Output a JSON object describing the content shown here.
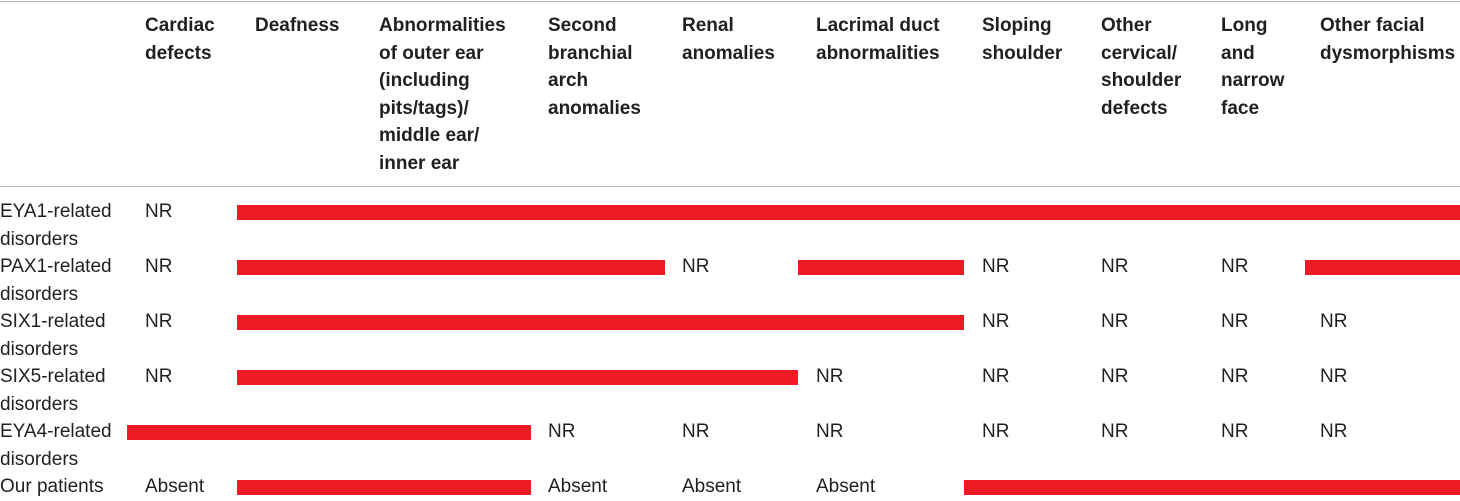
{
  "colors": {
    "bar": "#ed1c24",
    "text": "#231f20",
    "rule": "#b8b8b8"
  },
  "columns": [
    {
      "id": "cardiac",
      "label": "Cardiac\ndefects"
    },
    {
      "id": "deafness",
      "label": "Deafness"
    },
    {
      "id": "ear",
      "label": "Abnormalities\nof outer ear\n(including\npits/tags)/\nmiddle ear/\ninner ear"
    },
    {
      "id": "branchial",
      "label": "Second\nbranchial\narch\nanomalies"
    },
    {
      "id": "renal",
      "label": "Renal\nanomalies"
    },
    {
      "id": "lacrimal",
      "label": "Lacrimal duct\nabnormalities"
    },
    {
      "id": "shoulder",
      "label": "Sloping\nshoulder"
    },
    {
      "id": "cervical",
      "label": "Other\ncervical/\nshoulder\ndefects"
    },
    {
      "id": "face",
      "label": "Long\nand\nnarrow\nface"
    },
    {
      "id": "facial",
      "label": "Other facial\ndysmorphisms"
    }
  ],
  "rows": [
    {
      "label": "EYA1-related\ndisorders",
      "cells": [
        {
          "type": "text",
          "text": "NR",
          "col": 0
        },
        {
          "type": "bar",
          "from": 1,
          "to": 9
        }
      ]
    },
    {
      "label": "PAX1-related\ndisorders",
      "cells": [
        {
          "type": "text",
          "text": "NR",
          "col": 0
        },
        {
          "type": "bar",
          "from": 1,
          "to": 3
        },
        {
          "type": "text",
          "text": "NR",
          "col": 4
        },
        {
          "type": "bar",
          "from": 5,
          "to": 5
        },
        {
          "type": "text",
          "text": "NR",
          "col": 6
        },
        {
          "type": "text",
          "text": "NR",
          "col": 7
        },
        {
          "type": "text",
          "text": "NR",
          "col": 8
        },
        {
          "type": "bar",
          "from": 9,
          "to": 9
        }
      ]
    },
    {
      "label": "SIX1-related\ndisorders",
      "cells": [
        {
          "type": "text",
          "text": "NR",
          "col": 0
        },
        {
          "type": "bar",
          "from": 1,
          "to": 5
        },
        {
          "type": "text",
          "text": "NR",
          "col": 6
        },
        {
          "type": "text",
          "text": "NR",
          "col": 7
        },
        {
          "type": "text",
          "text": "NR",
          "col": 8
        },
        {
          "type": "text",
          "text": "NR",
          "col": 9
        }
      ]
    },
    {
      "label": "SIX5-related\ndisorders",
      "cells": [
        {
          "type": "text",
          "text": "NR",
          "col": 0
        },
        {
          "type": "bar",
          "from": 1,
          "to": 4
        },
        {
          "type": "text",
          "text": "NR",
          "col": 5
        },
        {
          "type": "text",
          "text": "NR",
          "col": 6
        },
        {
          "type": "text",
          "text": "NR",
          "col": 7
        },
        {
          "type": "text",
          "text": "NR",
          "col": 8
        },
        {
          "type": "text",
          "text": "NR",
          "col": 9
        }
      ]
    },
    {
      "label": "EYA4-related\ndisorders",
      "cells": [
        {
          "type": "bar",
          "from": 0,
          "to": 2
        },
        {
          "type": "text",
          "text": "NR",
          "col": 3
        },
        {
          "type": "text",
          "text": "NR",
          "col": 4
        },
        {
          "type": "text",
          "text": "NR",
          "col": 5
        },
        {
          "type": "text",
          "text": "NR",
          "col": 6
        },
        {
          "type": "text",
          "text": "NR",
          "col": 7
        },
        {
          "type": "text",
          "text": "NR",
          "col": 8
        },
        {
          "type": "text",
          "text": "NR",
          "col": 9
        }
      ]
    },
    {
      "label": "Our patients",
      "cells": [
        {
          "type": "text",
          "text": "Absent",
          "col": 0
        },
        {
          "type": "bar",
          "from": 1,
          "to": 2
        },
        {
          "type": "text",
          "text": "Absent",
          "col": 3
        },
        {
          "type": "text",
          "text": "Absent",
          "col": 4
        },
        {
          "type": "text",
          "text": "Absent",
          "col": 5
        },
        {
          "type": "bar",
          "from": 6,
          "to": 9
        }
      ]
    }
  ]
}
